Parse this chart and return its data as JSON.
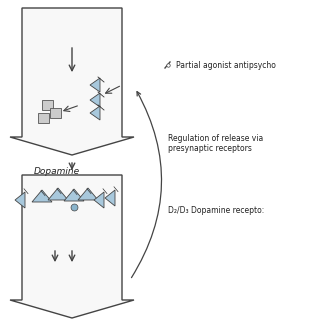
{
  "background_color": "#ffffff",
  "arrow_color": "#444444",
  "triangle_fill": "#a8c8dc",
  "triangle_edge": "#444444",
  "square_fill": "#cccccc",
  "square_edge": "#555555",
  "text_color": "#222222",
  "legend_line1": "Partial agonist antipsycho",
  "legend_line2a": "Regulation of release via",
  "legend_line2b": "presynaptic receptors",
  "legend_line3": "D₂/D₃ Dopamine recepto:",
  "dopamine_label": "Dopamine",
  "fig_w": 3.2,
  "fig_h": 3.2,
  "dpi": 100
}
